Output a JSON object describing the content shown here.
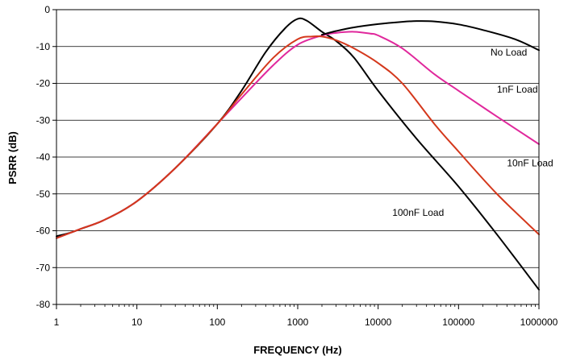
{
  "chart_data": {
    "type": "line",
    "title": "",
    "xlabel": "FREQUENCY (Hz)",
    "ylabel": "PSRR (dB)",
    "x_scale": "log",
    "xlim": [
      1,
      1000000
    ],
    "ylim": [
      -80,
      0
    ],
    "x_ticks": [
      "1",
      "10",
      "100",
      "1000",
      "10000",
      "100000",
      "1000000"
    ],
    "y_ticks": [
      "0",
      "-10",
      "-20",
      "-30",
      "-40",
      "-50",
      "-60",
      "-70",
      "-80"
    ],
    "grid": "horizontal",
    "series": [
      {
        "name": "No Load",
        "color": "#000000",
        "points": [
          [
            1,
            -61.5
          ],
          [
            1.5,
            -60.5
          ],
          [
            2,
            -59.5
          ],
          [
            4,
            -57
          ],
          [
            10,
            -52
          ],
          [
            30,
            -43
          ],
          [
            100,
            -31
          ],
          [
            200,
            -22
          ],
          [
            400,
            -11.5
          ],
          [
            700,
            -5
          ],
          [
            1000,
            -2.5
          ],
          [
            1300,
            -3
          ],
          [
            2000,
            -6
          ],
          [
            3000,
            -8.5
          ],
          [
            5000,
            -13
          ],
          [
            10000,
            -22
          ],
          [
            30000,
            -35
          ],
          [
            100000,
            -48
          ],
          [
            300000,
            -61
          ],
          [
            1000000,
            -76
          ]
        ]
      },
      {
        "name": "1nF Load",
        "color": "#e0289c",
        "points": [
          [
            1,
            -62
          ],
          [
            2,
            -59.5
          ],
          [
            4,
            -57
          ],
          [
            10,
            -52
          ],
          [
            30,
            -43
          ],
          [
            100,
            -31
          ],
          [
            200,
            -24
          ],
          [
            500,
            -15
          ],
          [
            1000,
            -9.5
          ],
          [
            2000,
            -7
          ],
          [
            3000,
            -6.3
          ],
          [
            5000,
            -6
          ],
          [
            8000,
            -6.5
          ],
          [
            10000,
            -7
          ],
          [
            20000,
            -10.5
          ],
          [
            50000,
            -17.5
          ],
          [
            100000,
            -22
          ],
          [
            300000,
            -29
          ],
          [
            1000000,
            -36.5
          ]
        ]
      },
      {
        "name": "10nF Load",
        "color": "#d4381c",
        "points": [
          [
            1,
            -62
          ],
          [
            2,
            -59.5
          ],
          [
            4,
            -57
          ],
          [
            10,
            -52
          ],
          [
            30,
            -43
          ],
          [
            100,
            -31
          ],
          [
            200,
            -23
          ],
          [
            500,
            -13
          ],
          [
            1000,
            -8
          ],
          [
            1500,
            -7.3
          ],
          [
            2000,
            -7.3
          ],
          [
            3000,
            -8.3
          ],
          [
            5000,
            -10.5
          ],
          [
            10000,
            -14.5
          ],
          [
            20000,
            -20
          ],
          [
            50000,
            -31
          ],
          [
            100000,
            -38.5
          ],
          [
            300000,
            -50
          ],
          [
            1000000,
            -61
          ]
        ]
      },
      {
        "name": "",
        "color": "#000000",
        "points": [
          [
            2000,
            -6.8
          ],
          [
            3000,
            -5.8
          ],
          [
            5000,
            -4.8
          ],
          [
            10000,
            -3.9
          ],
          [
            20000,
            -3.3
          ],
          [
            30000,
            -3.1
          ],
          [
            50000,
            -3.2
          ],
          [
            100000,
            -4
          ],
          [
            200000,
            -5.5
          ],
          [
            500000,
            -8
          ],
          [
            1000000,
            -11
          ]
        ]
      }
    ],
    "annotations": [
      {
        "text": "No Load",
        "x": 250000,
        "y": -12.5
      },
      {
        "text": "1nF Load",
        "x": 300000,
        "y": -22.5
      },
      {
        "text": "10nF Load",
        "x": 400000,
        "y": -42.5
      },
      {
        "text": "100nF Load",
        "x": 15000,
        "y": -56
      }
    ]
  }
}
